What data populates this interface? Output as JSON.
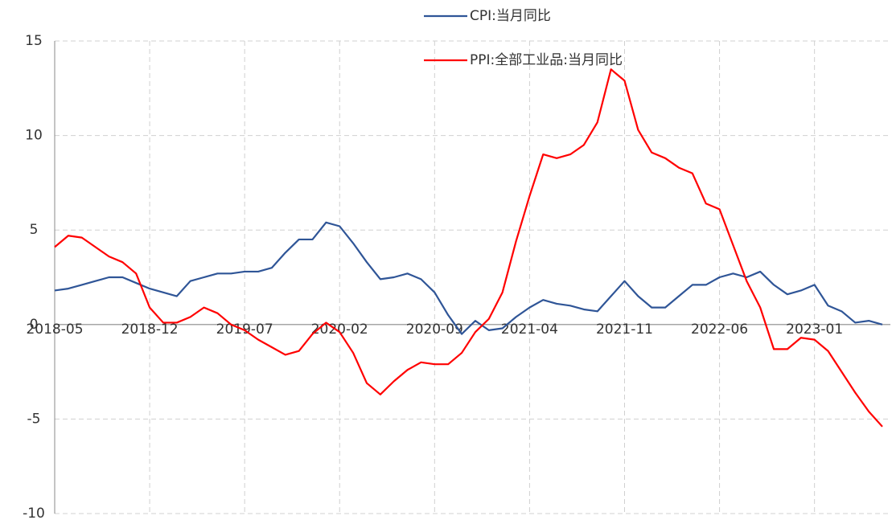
{
  "chart_data": {
    "type": "line",
    "categories": [
      "2018-05",
      null,
      null,
      null,
      null,
      null,
      null,
      "2018-12",
      null,
      null,
      null,
      null,
      null,
      null,
      "2019-07",
      null,
      null,
      null,
      null,
      null,
      null,
      "2020-02",
      null,
      null,
      null,
      null,
      null,
      null,
      "2020-09",
      null,
      null,
      null,
      null,
      null,
      null,
      "2021-04",
      null,
      null,
      null,
      null,
      null,
      null,
      "2021-11",
      null,
      null,
      null,
      null,
      null,
      null,
      "2022-06",
      null,
      null,
      null,
      null,
      null,
      null,
      "2023-01",
      null,
      null,
      null,
      null,
      null
    ],
    "series": [
      {
        "name": "CPI:当月同比",
        "color": "#2f5597",
        "values": [
          1.8,
          1.9,
          2.1,
          2.3,
          2.5,
          2.5,
          2.2,
          1.9,
          1.7,
          1.5,
          2.3,
          2.5,
          2.7,
          2.7,
          2.8,
          2.8,
          3.0,
          3.8,
          4.5,
          4.5,
          5.4,
          5.2,
          4.3,
          3.3,
          2.4,
          2.5,
          2.7,
          2.4,
          1.7,
          0.5,
          -0.5,
          0.2,
          -0.3,
          -0.2,
          0.4,
          0.9,
          1.3,
          1.1,
          1.0,
          0.8,
          0.7,
          1.5,
          2.3,
          1.5,
          0.9,
          0.9,
          1.5,
          2.1,
          2.1,
          2.5,
          2.7,
          2.5,
          2.8,
          2.1,
          1.6,
          1.8,
          2.1,
          1.0,
          0.7,
          0.1,
          0.2,
          0.0
        ]
      },
      {
        "name": "PPI:全部工业品:当月同比",
        "color": "#ff0000",
        "values": [
          4.1,
          4.7,
          4.6,
          4.1,
          3.6,
          3.3,
          2.7,
          0.9,
          0.1,
          0.1,
          0.4,
          0.9,
          0.6,
          0.0,
          -0.3,
          -0.8,
          -1.2,
          -1.6,
          -1.4,
          -0.5,
          0.1,
          -0.4,
          -1.5,
          -3.1,
          -3.7,
          -3.0,
          -2.4,
          -2.0,
          -2.1,
          -2.1,
          -1.5,
          -0.4,
          0.3,
          1.7,
          4.4,
          6.8,
          9.0,
          8.8,
          9.0,
          9.5,
          10.7,
          13.5,
          12.9,
          10.3,
          9.1,
          8.8,
          8.3,
          8.0,
          6.4,
          6.1,
          4.2,
          2.3,
          0.9,
          -1.3,
          -1.3,
          -0.7,
          -0.8,
          -1.4,
          -2.5,
          -3.6,
          -4.6,
          -5.4
        ]
      }
    ],
    "ylim": [
      -10,
      15
    ],
    "yticks": [
      -10,
      -5,
      0,
      5,
      10,
      15
    ],
    "grid": true,
    "legend": "top"
  }
}
